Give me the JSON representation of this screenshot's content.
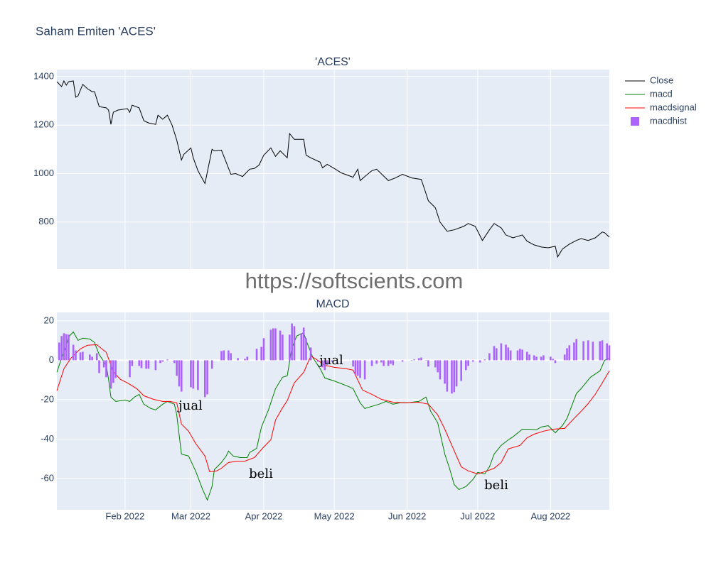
{
  "title": "Saham Emiten 'ACES'",
  "watermark": "https://softscients.com",
  "chart_data": [
    {
      "type": "line",
      "title": "'ACES'",
      "xlim": [
        3,
        238
      ],
      "ylim": [
        606,
        1429
      ],
      "yticks": [
        800,
        1000,
        1200,
        1400
      ],
      "grid": true,
      "series": [
        {
          "name": "Close",
          "color": "#000000",
          "x": [
            3,
            5,
            6,
            7,
            8,
            10,
            11,
            12,
            14,
            16,
            18,
            19,
            21,
            24,
            25,
            26,
            27,
            29,
            33,
            34,
            35,
            38,
            40,
            42,
            45,
            46,
            48,
            50,
            52,
            54,
            56,
            57,
            60,
            61,
            63,
            66,
            69,
            70,
            73,
            75,
            77,
            79,
            82,
            85,
            87,
            89,
            91,
            94,
            96,
            98,
            101,
            102,
            104,
            108,
            109,
            111,
            115,
            116,
            118,
            121,
            124,
            129,
            131,
            132,
            134,
            137,
            139,
            144,
            147,
            150,
            154,
            158,
            160,
            161,
            164,
            166,
            169,
            172,
            176,
            178,
            181,
            184,
            187,
            189,
            192,
            194,
            197,
            201,
            203,
            206,
            209,
            212,
            215,
            216,
            218,
            221,
            224,
            226,
            229,
            232,
            235,
            236,
            238
          ],
          "values": [
            1379,
            1359,
            1382,
            1365,
            1379,
            1382,
            1315,
            1321,
            1368,
            1350,
            1338,
            1338,
            1276,
            1271,
            1262,
            1203,
            1253,
            1262,
            1268,
            1253,
            1282,
            1271,
            1218,
            1209,
            1203,
            1241,
            1224,
            1241,
            1200,
            1138,
            1056,
            1079,
            1106,
            1065,
            1012,
            959,
            1100,
            1094,
            1097,
            1047,
            997,
            1000,
            988,
            1018,
            1021,
            1035,
            1076,
            1106,
            1071,
            1094,
            1065,
            1165,
            1141,
            1141,
            1076,
            1065,
            1047,
            1024,
            1038,
            1021,
            1003,
            985,
            1018,
            971,
            988,
            1012,
            1018,
            971,
            982,
            997,
            982,
            976,
            918,
            888,
            859,
            800,
            762,
            768,
            782,
            794,
            782,
            724,
            768,
            794,
            776,
            747,
            735,
            747,
            721,
            706,
            697,
            694,
            700,
            656,
            688,
            709,
            724,
            732,
            724,
            735,
            759,
            756,
            738
          ]
        }
      ]
    },
    {
      "type": "line",
      "title": "MACD",
      "xlim": [
        3,
        238
      ],
      "xticks": [
        {
          "value": 32,
          "label": "Feb 2022"
        },
        {
          "value": 60,
          "label": "Mar 2022"
        },
        {
          "value": 91,
          "label": "Apr 2022"
        },
        {
          "value": 121,
          "label": "May 2022"
        },
        {
          "value": 152,
          "label": "Jun 2022"
        },
        {
          "value": 182,
          "label": "Jul 2022"
        },
        {
          "value": 213,
          "label": "Aug 2022"
        }
      ],
      "ylim": [
        -75.9,
        24.3
      ],
      "yticks": [
        -60,
        -40,
        -20,
        0,
        20
      ],
      "grid": true,
      "series": [
        {
          "name": "macd",
          "color": "#008000",
          "x": [
            3,
            5,
            7,
            8,
            10,
            12,
            14,
            17,
            19,
            21,
            24,
            25,
            26,
            28,
            32,
            34,
            36,
            38,
            40,
            43,
            45,
            48,
            50,
            53,
            54,
            56,
            59,
            62,
            65,
            67,
            69,
            70,
            73,
            75,
            76,
            78,
            81,
            84,
            85,
            88,
            90,
            93,
            96,
            99,
            101,
            103,
            105,
            108,
            109,
            112,
            115,
            117,
            121,
            124,
            127,
            129,
            132,
            134,
            137,
            140,
            143,
            146,
            149,
            152,
            157,
            160,
            162,
            165,
            168,
            170,
            172,
            174,
            177,
            180,
            182,
            185,
            187,
            189,
            192,
            195,
            197,
            201,
            204,
            207,
            209,
            212,
            215,
            218,
            220,
            224,
            226,
            228,
            230,
            234,
            236,
            238
          ],
          "values": [
            -6.1,
            1.1,
            7.2,
            11.9,
            14.4,
            10.1,
            11.2,
            10.8,
            9.0,
            2.9,
            -2.5,
            -9.7,
            -18.7,
            -20.9,
            -20.2,
            -20.9,
            -18.7,
            -17.3,
            -22.3,
            -24.5,
            -25.2,
            -22.3,
            -20.9,
            -22.3,
            -27.7,
            -47.6,
            -48.6,
            -56.2,
            -65.6,
            -71.0,
            -64.1,
            -55.5,
            -51.9,
            -48.6,
            -46.1,
            -48.6,
            -49.4,
            -49.4,
            -46.8,
            -44.7,
            -33.9,
            -25.2,
            -14.4,
            -8.6,
            -7.9,
            6.5,
            12.3,
            14.1,
            10.1,
            1.1,
            -4.3,
            -9.0,
            -10.5,
            -11.9,
            -13.3,
            -14.4,
            -21.6,
            -24.5,
            -23.4,
            -22.3,
            -20.9,
            -22.3,
            -21.6,
            -21.6,
            -20.9,
            -18.7,
            -25.9,
            -31.7,
            -47.6,
            -54.8,
            -63.1,
            -65.6,
            -64.1,
            -60.5,
            -56.9,
            -57.7,
            -54.1,
            -47.6,
            -43.2,
            -40.4,
            -38.9,
            -35.0,
            -35.0,
            -35.3,
            -33.9,
            -33.2,
            -36.8,
            -33.2,
            -29.5,
            -16.9,
            -14.4,
            -11.5,
            -8.6,
            -5.4,
            0,
            1.1
          ]
        },
        {
          "name": "macdsignal",
          "color": "#ff0000",
          "x": [
            3,
            6,
            9,
            13,
            16,
            20,
            24,
            27,
            30,
            33,
            37,
            40,
            44,
            48,
            51,
            54,
            56,
            59,
            62,
            66,
            68,
            71,
            73,
            76,
            80,
            83,
            87,
            91,
            94,
            96,
            99,
            101,
            104,
            108,
            111,
            114,
            117,
            121,
            126,
            129,
            133,
            137,
            141,
            146,
            151,
            157,
            161,
            165,
            168,
            171,
            175,
            178,
            182,
            186,
            189,
            192,
            195,
            200,
            203,
            206,
            210,
            214,
            219,
            223,
            226,
            229,
            232,
            235,
            238
          ],
          "values": [
            -15.5,
            -4.3,
            1.1,
            5.8,
            7.6,
            7.9,
            4.0,
            -5.8,
            -9.7,
            -11.5,
            -14.4,
            -18.0,
            -19.8,
            -20.9,
            -20.9,
            -21.6,
            -32.4,
            -36.0,
            -42.2,
            -48.6,
            -56.6,
            -56.2,
            -54.8,
            -51.9,
            -51.2,
            -51.2,
            -49.4,
            -44.0,
            -40.4,
            -30.3,
            -24.1,
            -20.5,
            -11.5,
            -6.1,
            2.2,
            0,
            -2.5,
            -3.6,
            -4.3,
            -5.0,
            -15.1,
            -17.3,
            -19.8,
            -21.3,
            -21.6,
            -21.3,
            -22.3,
            -27.7,
            -35.0,
            -43.2,
            -54.1,
            -56.2,
            -57.7,
            -56.2,
            -54.8,
            -51.9,
            -45.0,
            -43.2,
            -39.3,
            -37.5,
            -36.0,
            -35.0,
            -34.6,
            -29.5,
            -25.9,
            -22.0,
            -17.3,
            -11.5,
            -5.4
          ]
        },
        {
          "name": "macdhist",
          "color": "#ab63fa",
          "type": "bar",
          "x": [
            4,
            5,
            6,
            7,
            8,
            10,
            11,
            13,
            14,
            17,
            18,
            20,
            21,
            23,
            24,
            26,
            27,
            28,
            34,
            35,
            38,
            39,
            41,
            42,
            45,
            47,
            48,
            50,
            53,
            54,
            55,
            56,
            60,
            61,
            63,
            66,
            67,
            69,
            73,
            74,
            76,
            77,
            80,
            83,
            84,
            88,
            90,
            91,
            94,
            95,
            96,
            98,
            99,
            102,
            103,
            104,
            107,
            108,
            109,
            111,
            114,
            116,
            117,
            118,
            120,
            129,
            130,
            131,
            132,
            134,
            137,
            139,
            141,
            142,
            144,
            145,
            146,
            150,
            154,
            155,
            157,
            158,
            160,
            161,
            164,
            165,
            166,
            168,
            169,
            171,
            172,
            173,
            175,
            177,
            178,
            180,
            183,
            185,
            187,
            189,
            190,
            192,
            194,
            195,
            196,
            199,
            200,
            201,
            203,
            204,
            206,
            207,
            209,
            210,
            213,
            214,
            215,
            219,
            220,
            221,
            223,
            224,
            227,
            229,
            231,
            234,
            235,
            237,
            238
          ],
          "values": [
            9,
            12.3,
            13.7,
            13.3,
            13,
            7.9,
            5,
            4,
            4.3,
            2.9,
            1.8,
            3.6,
            -6.5,
            -3.6,
            -8.6,
            -14.4,
            -11.5,
            -9,
            -8.6,
            -2.9,
            -2.9,
            -4,
            -4.3,
            -4.3,
            -5,
            -1.4,
            -0.7,
            0.4,
            -1.4,
            -7.9,
            -13.3,
            -15.9,
            -13.7,
            -14.4,
            -15.1,
            -18.7,
            -17.3,
            -4.3,
            4.7,
            5,
            5,
            3.6,
            1.1,
            0.7,
            1.8,
            5.8,
            6.8,
            11.2,
            15.5,
            16.2,
            16.2,
            15.1,
            13,
            13,
            18.7,
            17.3,
            13.7,
            16.6,
            11.2,
            6.5,
            -0.7,
            -3.6,
            -5,
            -2.2,
            -0.7,
            -3.2,
            -7.2,
            -7.9,
            -9,
            -9.7,
            -2.9,
            -1.8,
            -1.1,
            -2.9,
            -2.9,
            -1.8,
            -2.5,
            -0.7,
            0,
            0.4,
            1.1,
            1.4,
            0,
            -3.2,
            -3.6,
            -6.1,
            -9.7,
            -11.9,
            -15.9,
            -16.9,
            -16.2,
            -13.3,
            -10.5,
            -5,
            -2.9,
            -0.7,
            -1.1,
            0.4,
            3.6,
            7.2,
            6.1,
            8.6,
            7.9,
            6.5,
            5,
            5,
            5.8,
            5.4,
            4.3,
            2.9,
            2.5,
            1.8,
            1.8,
            2.5,
            1.8,
            0.7,
            -1.4,
            2.9,
            6.1,
            7.6,
            9,
            10.8,
            9.7,
            10.1,
            9.4,
            9.7,
            10.1,
            8.6,
            7.6
          ]
        }
      ],
      "annotations": [
        "jual",
        "beli",
        "jual",
        "beli"
      ]
    }
  ]
}
